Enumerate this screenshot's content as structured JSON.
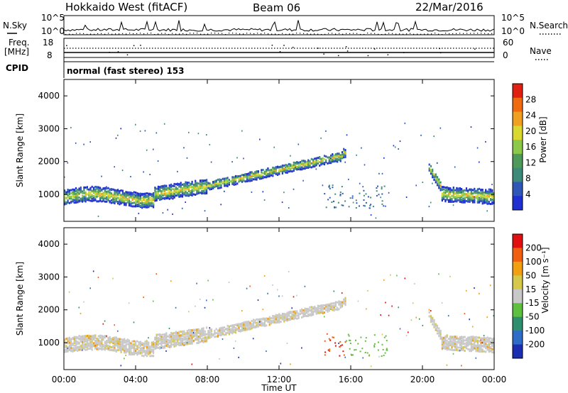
{
  "header": {
    "radar": "Hokkaido West (fitACF)",
    "beam": "Beam 06",
    "date": "22/Mar/2016"
  },
  "noise_panel": {
    "left_label": "N.Sky",
    "right_label": "N.Search",
    "left_top": "10^5",
    "left_bottom": "10^0",
    "right_top": "10^5",
    "right_bottom": "10^0"
  },
  "freq_panel": {
    "left_label_1": "Freq.",
    "left_label_2": "[MHz]",
    "left_top": "18",
    "left_bottom": "8",
    "right_label": "Nave",
    "right_top": "60",
    "right_bottom": "0"
  },
  "cpid": {
    "label": "CPID",
    "value": "normal (fast stereo) 153"
  },
  "chart_data": [
    {
      "type": "heatmap",
      "name": "power",
      "ylabel": "Slant Range [km]",
      "ylim": [
        180,
        4500
      ],
      "yticks": [
        "1000",
        "2000",
        "3000",
        "4000"
      ],
      "colorbar": {
        "label": "Power [dB]",
        "ticks": [
          "4",
          "8",
          "12",
          "16",
          "20",
          "24",
          "28"
        ],
        "range": [
          0,
          32
        ],
        "colors": [
          "#2030d0",
          "#2e57b8",
          "#3e8a7a",
          "#4f9a5a",
          "#8cc84a",
          "#d8d830",
          "#f0a020",
          "#f06a10",
          "#e02010"
        ]
      }
    },
    {
      "type": "heatmap",
      "name": "velocity",
      "ylabel": "Slant Range [km]",
      "ylim": [
        180,
        4500
      ],
      "yticks": [
        "1000",
        "2000",
        "3000",
        "4000"
      ],
      "xlabel": "Time UT",
      "xticks": [
        "00:00",
        "04:00",
        "08:00",
        "12:00",
        "16:00",
        "20:00",
        "00:00"
      ],
      "colorbar": {
        "label": "Velocity [m s⁻¹]",
        "ticks": [
          "200",
          "100",
          "50",
          "15",
          "-15",
          "-50",
          "-100",
          "-200"
        ],
        "colors": [
          "#1b2fb0",
          "#2f6cc8",
          "#2e8e6e",
          "#5fc040",
          "#c8c8c8",
          "#d6c84a",
          "#f0a010",
          "#f06010",
          "#e01010"
        ]
      }
    }
  ]
}
